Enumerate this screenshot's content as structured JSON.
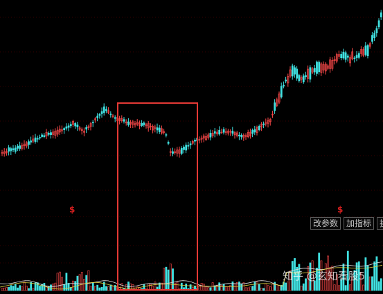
{
  "chart": {
    "background": "#000000",
    "up_color": "#ff4a4a",
    "down_color": "#40e0e0",
    "grid_color": "#3a0000"
  },
  "signals": [
    {
      "label": "$",
      "color": "#e02020"
    },
    {
      "label": "$",
      "color": "#e02020"
    }
  ],
  "toolbar": {
    "modify_params_label": "改参数",
    "add_indicator_label": "加指标",
    "overflow_label": "换"
  },
  "highlight": {
    "color": "#e53935"
  },
  "watermark": {
    "text": "知乎 @玄知看股5"
  }
}
